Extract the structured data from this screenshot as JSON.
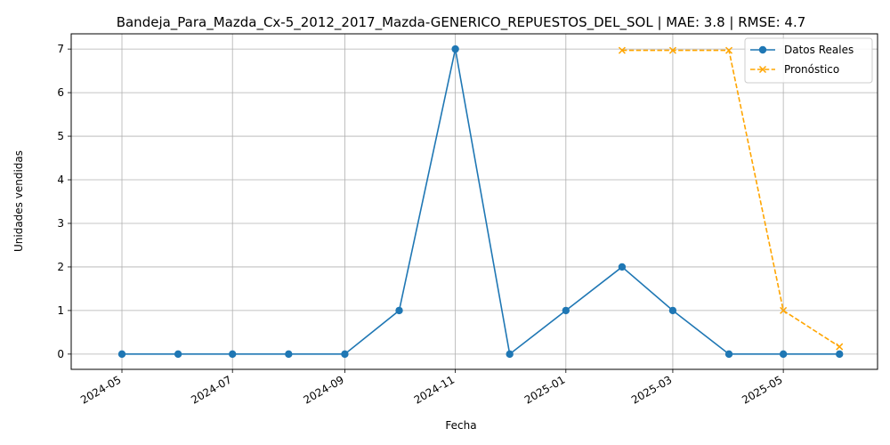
{
  "chart_data": {
    "type": "line",
    "title": "Bandeja_Para_Mazda_Cx-5_2012_2017_Mazda-GENERICO_REPUESTOS_DEL_SOL | MAE: 3.8 | RMSE: 4.7",
    "xlabel": "Fecha",
    "ylabel": "Unidades vendidas",
    "xlim": [
      "2024-04-03",
      "2025-06-22"
    ],
    "ylim": [
      -0.35,
      7.35
    ],
    "grid": true,
    "legend_position": "top-right",
    "x_ticks": [
      "2024-05",
      "2024-07",
      "2024-09",
      "2024-11",
      "2025-01",
      "2025-03",
      "2025-05"
    ],
    "x_tick_dates": [
      "2024-05-01",
      "2024-07-01",
      "2024-09-01",
      "2024-11-01",
      "2025-01-01",
      "2025-03-01",
      "2025-05-01"
    ],
    "y_ticks": [
      "0",
      "1",
      "2",
      "3",
      "4",
      "5",
      "6",
      "7"
    ],
    "series": [
      {
        "name": "Datos Reales",
        "color": "#1f77b4",
        "style": "solid",
        "marker": "circle",
        "x": [
          "2024-05-01",
          "2024-06-01",
          "2024-07-01",
          "2024-08-01",
          "2024-09-01",
          "2024-10-01",
          "2024-11-01",
          "2024-12-01",
          "2025-01-01",
          "2025-02-01",
          "2025-03-01",
          "2025-04-01",
          "2025-05-01",
          "2025-06-01"
        ],
        "values": [
          0,
          0,
          0,
          0,
          0,
          1,
          7,
          0,
          1,
          2,
          1,
          0,
          0,
          0
        ]
      },
      {
        "name": "Pronóstico",
        "color": "#ffa500",
        "style": "dashed",
        "marker": "x",
        "x": [
          "2025-02-01",
          "2025-03-01",
          "2025-04-01",
          "2025-05-01",
          "2025-06-01"
        ],
        "values": [
          6.97,
          6.97,
          6.97,
          1.0,
          0.17
        ]
      }
    ]
  }
}
